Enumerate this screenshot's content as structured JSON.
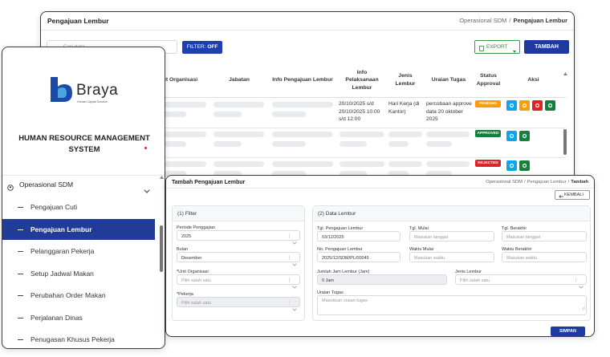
{
  "list_page": {
    "title": "Pengajuan Lembur",
    "breadcrumb": {
      "parent": "Operasional SDM",
      "separator": "/",
      "current": "Pengajuan Lembur"
    },
    "search_placeholder": "Cari data",
    "filter_button": {
      "label": "FILTER:",
      "state": "OFF"
    },
    "export_button": "EXPORT",
    "add_button": "TAMBAH",
    "table": {
      "columns": [
        "Unit Organisasi",
        "Jabatan",
        "Info Pengajuan Lembur",
        "Info Pelaksanaan Lembur",
        "Jenis Lembur",
        "Uraian Tugas",
        "Status Approval",
        "Aksi"
      ],
      "rows": [
        {
          "info_pelaksanaan": "20/10/2025 s/d 20/10/2025 10:00 s/d 12:00",
          "jenis": "Hari Kerja (di Kantor)",
          "uraian": "percobaan approve data 20 oktober 2025",
          "status": "PENDING"
        },
        {
          "status": "APPROVED"
        },
        {
          "status": "REJECTED"
        }
      ]
    }
  },
  "sidebar": {
    "logo_text": "Braya",
    "tagline": "Human Capital Solution",
    "app_title": "HUMAN RESOURCE MANAGEMENT SYSTEM",
    "section": "Operasional SDM",
    "items": [
      "Pengajuan Cuti",
      "Pengajuan Lembur",
      "Pelanggaran Pekerja",
      "Setup Jadwal Makan",
      "Perubahan Order Makan",
      "Perjalanan Dinas",
      "Penugasan Khusus Pekerja"
    ],
    "active_item": 1
  },
  "form_page": {
    "title": "Tambah Pengajuan Lembur",
    "breadcrumb": {
      "parent": "Operasional SDM",
      "separator": "/",
      "middle": "Pengajuan Lembur",
      "current": "Tambah"
    },
    "back_button": "KEMBALI",
    "filter_card": {
      "title": "(1) Filter",
      "fields": [
        {
          "label": "Periode Penggajian",
          "value": "2025"
        },
        {
          "label": "Bulan",
          "value": "Desember"
        },
        {
          "label": "*Unit Organisasi",
          "placeholder": "Pilih salah satu"
        },
        {
          "label": "*Pekerja",
          "placeholder": "Pilih salah satu"
        }
      ]
    },
    "data_card": {
      "title": "(2) Data Lembur",
      "fields": [
        {
          "label": "Tgl. Pengajuan Lembur",
          "value": "03/12/2025"
        },
        {
          "label": "Tgl. Mulai",
          "placeholder": "Masukan tanggal"
        },
        {
          "label": "Tgl. Berakhir",
          "placeholder": "Masukan tanggal"
        },
        {
          "label": "No. Pengajuan Lembur",
          "value": "2025/12/SDM/PL/00045"
        },
        {
          "label": "Waktu Mulai",
          "placeholder": "Masukan waktu"
        },
        {
          "label": "Waktu Berakhir",
          "placeholder": "Masukan waktu"
        },
        {
          "label": "Jumlah Jam Lembur (Jam)",
          "value": "0 Jam"
        },
        {
          "label": "Jenis Lembur",
          "placeholder": "Pilih salah satu"
        },
        {
          "label": "Uraian Tugas",
          "placeholder": "Masukkan uraian tugas"
        }
      ]
    },
    "save_button": "SIMPAN"
  }
}
